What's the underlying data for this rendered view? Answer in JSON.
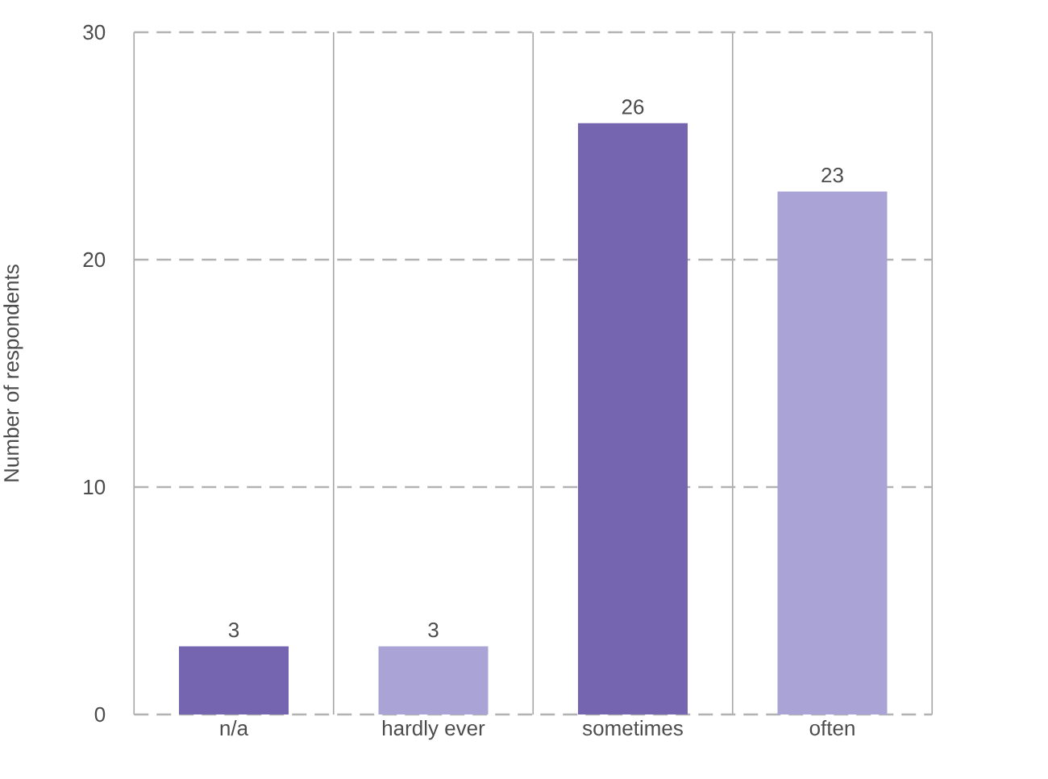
{
  "chart_data": {
    "type": "bar",
    "ylabel": "Number of respondents",
    "categories": [
      "n/a",
      "hardly ever",
      "sometimes",
      "often"
    ],
    "values": [
      3,
      3,
      26,
      23
    ],
    "colors": [
      "#7565b0",
      "#aaa4d6",
      "#7565b0",
      "#aaa4d6"
    ],
    "ylim": [
      0,
      30
    ],
    "yticks": [
      0,
      10,
      20,
      30
    ],
    "grid": true,
    "data_labels": true
  }
}
